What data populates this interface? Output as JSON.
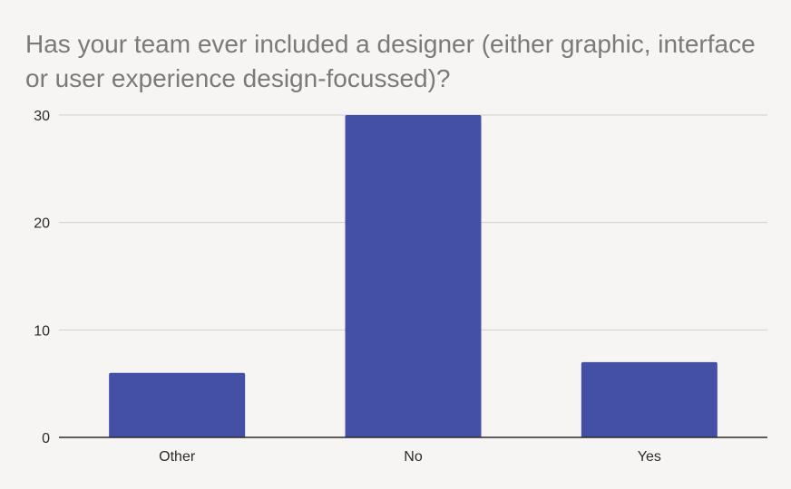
{
  "chart_data": {
    "type": "bar",
    "title": "Has your team ever included a designer (either graphic, interface or user experience design-focussed)?",
    "categories": [
      "Other",
      "No",
      "Yes"
    ],
    "values": [
      6,
      30,
      7
    ],
    "ylim": [
      0,
      30
    ],
    "yticks": [
      "0",
      "10",
      "20",
      "30"
    ],
    "ytick_values": [
      0,
      10,
      20,
      30
    ],
    "xlabel": "",
    "ylabel": "",
    "grid": true,
    "legend": "none",
    "colors": {
      "bar": "#4450a5",
      "grid": "#cfcfcf",
      "axis": "#2b2b2b",
      "title": "#7a7a7a",
      "background": "#f7f5f3"
    }
  }
}
